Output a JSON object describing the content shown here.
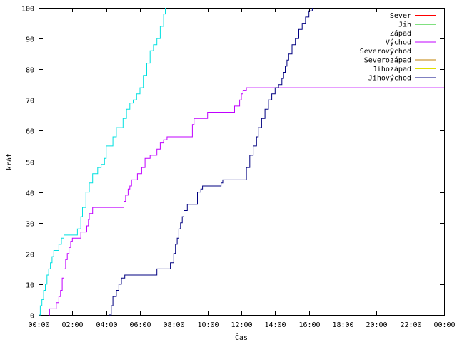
{
  "chart_data": {
    "type": "line",
    "title": "",
    "xlabel": "Čas",
    "ylabel": "krát",
    "xlim": [
      0,
      24
    ],
    "ylim": [
      0,
      100
    ],
    "x_ticks": [
      0,
      2,
      4,
      6,
      8,
      10,
      12,
      14,
      16,
      18,
      20,
      22,
      24
    ],
    "x_tick_labels": [
      "00:00",
      "02:00",
      "04:00",
      "06:00",
      "08:00",
      "10:00",
      "12:00",
      "14:00",
      "16:00",
      "18:00",
      "20:00",
      "22:00",
      "00:00"
    ],
    "y_ticks": [
      0,
      10,
      20,
      30,
      40,
      50,
      60,
      70,
      80,
      90,
      100
    ],
    "y_tick_labels": [
      "0",
      "10",
      "20",
      "30",
      "40",
      "50",
      "60",
      "70",
      "80",
      "90",
      "100"
    ],
    "grid": false,
    "legend_position": "top-right",
    "series": [
      {
        "name": "Sever",
        "color": "#ff0000",
        "x": [],
        "y": []
      },
      {
        "name": "Jih",
        "color": "#00c000",
        "x": [],
        "y": []
      },
      {
        "name": "Západ",
        "color": "#0080ff",
        "x": [],
        "y": []
      },
      {
        "name": "Východ",
        "color": "#c000ff",
        "step": true,
        "x": [
          0.6,
          0.65,
          1.0,
          1.05,
          1.2,
          1.3,
          1.4,
          1.5,
          1.6,
          1.7,
          1.8,
          1.9,
          2.0,
          2.3,
          2.5,
          2.75,
          2.85,
          2.95,
          3.0,
          3.2,
          3.6,
          5.0,
          5.05,
          5.15,
          5.3,
          5.4,
          5.5,
          5.7,
          5.85,
          6.1,
          6.3,
          6.6,
          6.75,
          7.0,
          7.2,
          7.4,
          7.6,
          7.8,
          8.0,
          9.1,
          9.2,
          9.3,
          10.0,
          11.0,
          11.6,
          11.9,
          12.0,
          12.1,
          12.3,
          24.0
        ],
        "y": [
          0,
          2,
          2,
          4,
          6,
          8,
          12,
          15,
          18,
          20,
          22,
          24,
          25,
          25,
          27,
          27,
          29,
          31,
          33,
          35,
          35,
          35,
          37,
          39,
          41,
          42,
          44,
          44,
          46,
          48,
          51,
          52,
          52,
          54,
          56,
          57,
          58,
          58,
          58,
          62,
          64,
          64,
          66,
          66,
          68,
          70,
          72,
          73,
          74,
          74
        ]
      },
      {
        "name": "Severovýchod",
        "color": "#00e0e0",
        "step": true,
        "x": [
          0.0,
          0.1,
          0.2,
          0.3,
          0.4,
          0.5,
          0.6,
          0.7,
          0.8,
          0.9,
          1.0,
          1.2,
          1.35,
          1.5,
          2.1,
          2.3,
          2.5,
          2.6,
          2.8,
          3.0,
          3.2,
          3.5,
          3.7,
          3.9,
          4.0,
          4.4,
          4.6,
          4.8,
          5.0,
          5.2,
          5.4,
          5.6,
          5.8,
          6.0,
          6.2,
          6.4,
          6.6,
          6.8,
          7.0,
          7.2,
          7.4,
          7.5
        ],
        "y": [
          0,
          3,
          5,
          8,
          10,
          13,
          15,
          17,
          19,
          21,
          21,
          23,
          25,
          26,
          26,
          28,
          32,
          35,
          40,
          43,
          46,
          48,
          49,
          51,
          55,
          58,
          61,
          61,
          64,
          67,
          69,
          70,
          72,
          74,
          78,
          82,
          86,
          88,
          90,
          94,
          98,
          100
        ]
      },
      {
        "name": "Severozápad",
        "color": "#c08000",
        "x": [],
        "y": []
      },
      {
        "name": "Jihozápad",
        "color": "#e0e000",
        "x": [],
        "y": []
      },
      {
        "name": "Jihovýchod",
        "color": "#000080",
        "step": true,
        "x": [
          4.15,
          4.3,
          4.4,
          4.6,
          4.75,
          4.9,
          5.1,
          6.8,
          7.0,
          7.6,
          7.8,
          8.0,
          8.1,
          8.2,
          8.3,
          8.4,
          8.5,
          8.6,
          8.8,
          8.9,
          9.4,
          9.6,
          9.7,
          10.0,
          10.8,
          10.9,
          11.3,
          12.1,
          12.3,
          12.5,
          12.7,
          12.9,
          13.0,
          13.2,
          13.4,
          13.6,
          13.8,
          14.0,
          14.2,
          14.4,
          14.5,
          14.6,
          14.7,
          14.8,
          15.0,
          15.2,
          15.4,
          15.6,
          15.8,
          16.0,
          16.2
        ],
        "y": [
          0,
          3,
          6,
          8,
          10,
          12,
          13,
          13,
          15,
          15,
          17,
          20,
          23,
          25,
          28,
          30,
          32,
          34,
          36,
          36,
          40,
          41,
          42,
          42,
          43,
          44,
          44,
          44,
          48,
          52,
          55,
          58,
          61,
          64,
          67,
          70,
          72,
          74,
          75,
          77,
          79,
          81,
          83,
          85,
          88,
          90,
          93,
          95,
          97,
          99,
          100
        ]
      }
    ]
  }
}
